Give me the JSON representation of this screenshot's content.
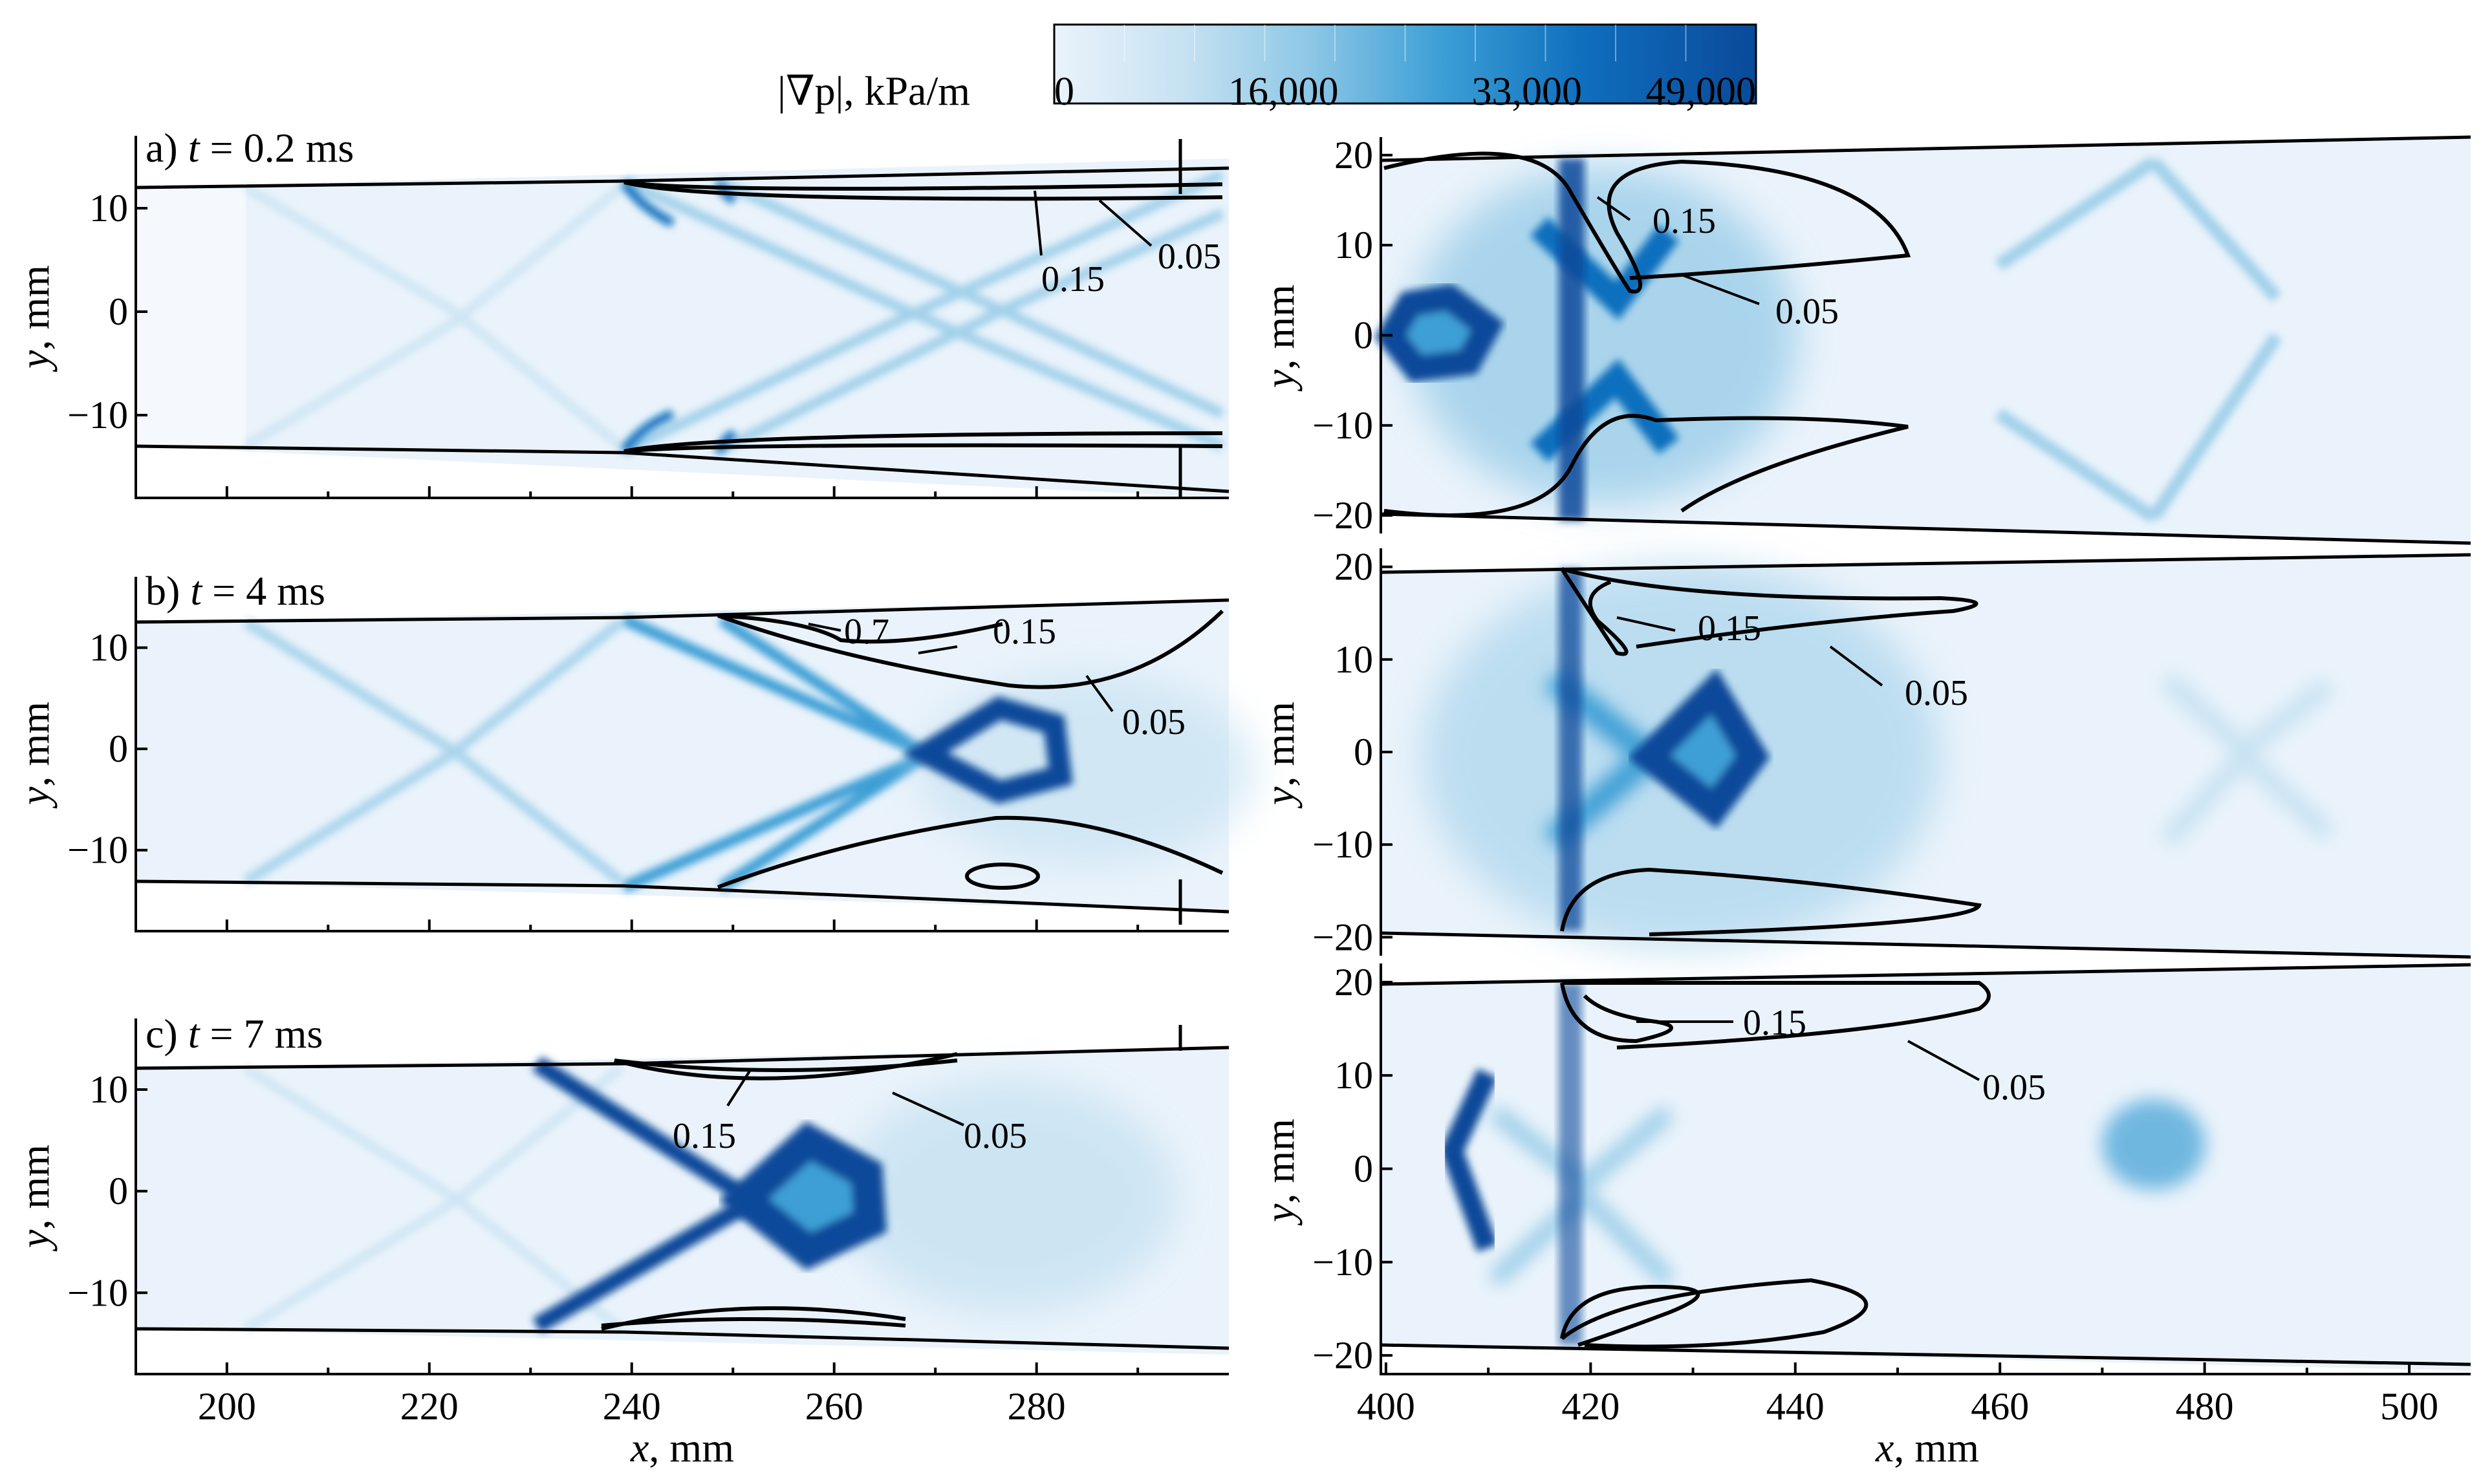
{
  "chart_data": {
    "type": "heatmap",
    "colorbar": {
      "title": "|∇p|, kPa/m",
      "ticks": [
        0,
        16000,
        33000,
        49000
      ],
      "tick_labels": [
        "0",
        "16,000",
        "33,000",
        "49,000"
      ],
      "range": [
        0,
        49000
      ],
      "colors": [
        "#eaf3fb",
        "#c7e2f2",
        "#8fc8e6",
        "#3d9fd6",
        "#0f6fbe",
        "#0a4a9a"
      ]
    },
    "left_panels": {
      "xlabel": "x, mm",
      "ylabel": "y, mm",
      "x_ticks": [
        200,
        220,
        240,
        260,
        280
      ],
      "x_tick_labels": [
        "200",
        "220",
        "240",
        "260",
        "280"
      ],
      "y_ticks": [
        10,
        0,
        -10
      ],
      "y_tick_labels": [
        "10",
        "0",
        "−10"
      ],
      "xlim": [
        191,
        299
      ],
      "ylim": [
        -18,
        17
      ],
      "panels": [
        {
          "label": "a)",
          "var": "t",
          "rest": " = 0.2 ms",
          "time_ms": 0.2,
          "contour_labels": [
            {
              "text": "0.15",
              "level": 0.15
            },
            {
              "text": "0.05",
              "level": 0.05
            }
          ]
        },
        {
          "label": "b)",
          "var": "t",
          "rest": " = 4 ms",
          "time_ms": 4,
          "contour_labels": [
            {
              "text": "0.7",
              "level": 0.7
            },
            {
              "text": "0.15",
              "level": 0.15
            },
            {
              "text": "0.05",
              "level": 0.05
            }
          ]
        },
        {
          "label": "c)",
          "var": "t",
          "rest": " = 7 ms",
          "time_ms": 7,
          "contour_labels": [
            {
              "text": "0.15",
              "level": 0.15
            },
            {
              "text": "0.05",
              "level": 0.05
            }
          ]
        }
      ]
    },
    "right_panels": {
      "xlabel": "x, mm",
      "ylabel": "y, mm",
      "x_ticks": [
        400,
        420,
        440,
        460,
        480,
        500
      ],
      "x_tick_labels": [
        "400",
        "420",
        "440",
        "460",
        "480",
        "500"
      ],
      "y_ticks": [
        20,
        10,
        0,
        -10,
        -20
      ],
      "y_tick_labels": [
        "20",
        "10",
        "0",
        "−10",
        "−20"
      ],
      "xlim": [
        399.5,
        506
      ],
      "ylim": [
        -22,
        22
      ],
      "panels": [
        {
          "time_ms": 0.2,
          "contour_labels": [
            {
              "text": "0.15",
              "level": 0.15
            },
            {
              "text": "0.05",
              "level": 0.05
            }
          ]
        },
        {
          "time_ms": 4,
          "contour_labels": [
            {
              "text": "0.15",
              "level": 0.15
            },
            {
              "text": "0.05",
              "level": 0.05
            }
          ]
        },
        {
          "time_ms": 7,
          "contour_labels": [
            {
              "text": "0.15",
              "level": 0.15
            },
            {
              "text": "0.05",
              "level": 0.05
            }
          ]
        }
      ]
    }
  }
}
